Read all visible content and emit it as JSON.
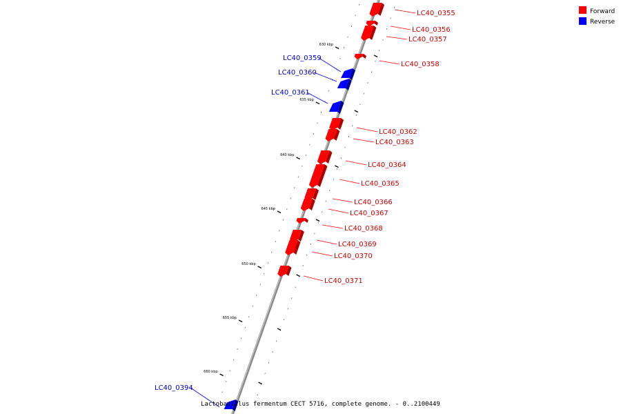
{
  "legend": [
    {
      "label": "Forward",
      "color": "#ff0000"
    },
    {
      "label": "Reverse",
      "color": "#0000ff"
    }
  ],
  "caption": "Lactobacillus fermentum CECT 5716, complete genome. - 0..2100449",
  "ticks": [
    "630 kbp",
    "635 kbp",
    "640 kbp",
    "645 kbp",
    "650 kbp",
    "655 kbp",
    "660 kbp"
  ],
  "genes": [
    {
      "id": "LC40_0355",
      "strand": "forward"
    },
    {
      "id": "LC40_0356",
      "strand": "forward"
    },
    {
      "id": "LC40_0357",
      "strand": "forward"
    },
    {
      "id": "LC40_0358",
      "strand": "forward"
    },
    {
      "id": "LC40_0359",
      "strand": "reverse"
    },
    {
      "id": "LC40_0360",
      "strand": "reverse"
    },
    {
      "id": "LC40_0361",
      "strand": "reverse"
    },
    {
      "id": "LC40_0362",
      "strand": "forward"
    },
    {
      "id": "LC40_0363",
      "strand": "forward"
    },
    {
      "id": "LC40_0364",
      "strand": "forward"
    },
    {
      "id": "LC40_0365",
      "strand": "forward"
    },
    {
      "id": "LC40_0366",
      "strand": "forward"
    },
    {
      "id": "LC40_0367",
      "strand": "forward"
    },
    {
      "id": "LC40_0368",
      "strand": "forward"
    },
    {
      "id": "LC40_0369",
      "strand": "forward"
    },
    {
      "id": "LC40_0370",
      "strand": "forward"
    },
    {
      "id": "LC40_0371",
      "strand": "forward"
    },
    {
      "id": "LC40_0394",
      "strand": "reverse"
    }
  ]
}
